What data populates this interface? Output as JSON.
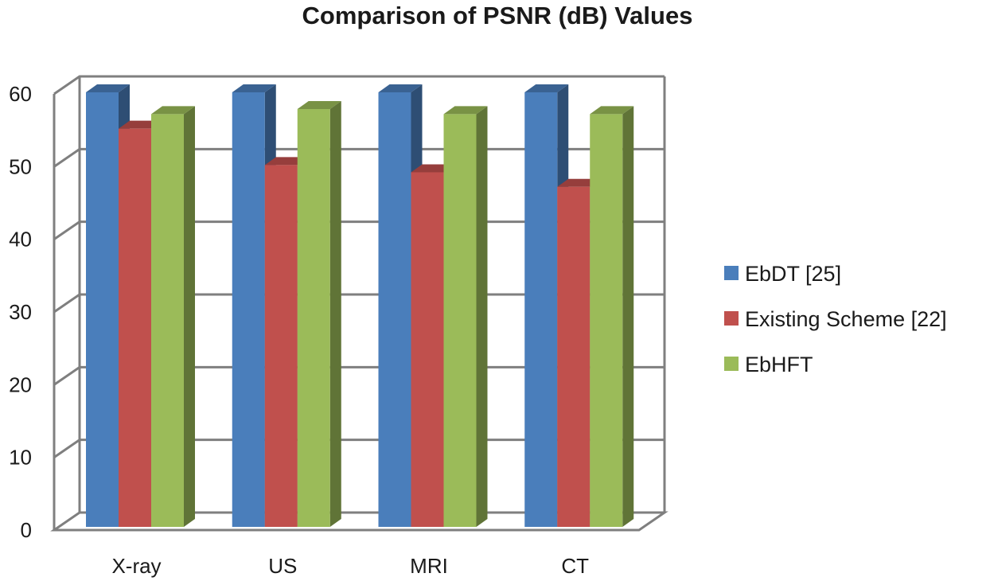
{
  "chart_data": {
    "type": "bar",
    "title": "Comparison of PSNR (dB) Values",
    "xlabel": "",
    "ylabel": "",
    "categories": [
      "X-ray",
      "US",
      "MRI",
      "CT"
    ],
    "series": [
      {
        "name": "EbDT [25]",
        "values": [
          60,
          60,
          60,
          60
        ],
        "color": "#4a7ebb"
      },
      {
        "name": "Existing Scheme [22]",
        "values": [
          55,
          50,
          49,
          47
        ],
        "color": "#c0504d"
      },
      {
        "name": "EbHFT",
        "values": [
          57,
          57.7,
          57,
          57
        ],
        "color": "#9bbb59"
      }
    ],
    "yticks": [
      0,
      10,
      20,
      30,
      40,
      50,
      60
    ],
    "ylim": [
      0,
      60
    ],
    "grid": true,
    "style": "3d-clustered-column",
    "legend_position": "right"
  }
}
